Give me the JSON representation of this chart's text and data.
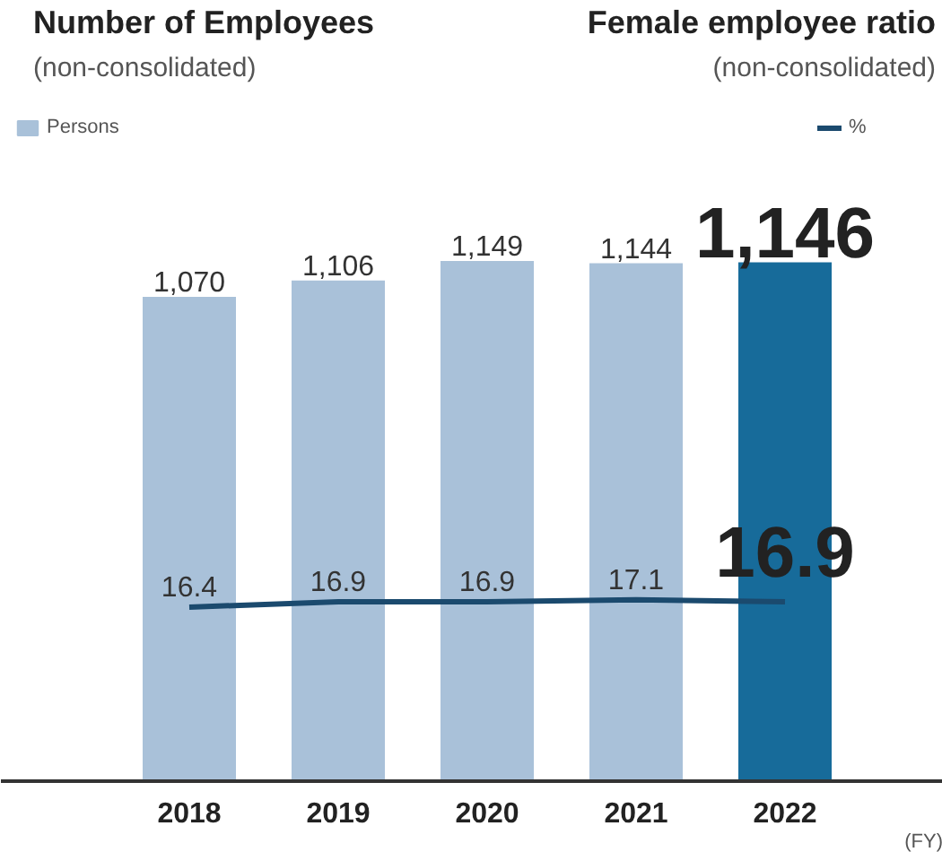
{
  "chart_data": {
    "type": "bar",
    "xlabel": "(FY)",
    "annotations": [
      "Number of Employees",
      "(non-consolidated)",
      "Female employee ratio",
      "(non-consolidated)"
    ],
    "categories": [
      "2018",
      "2019",
      "2020",
      "2021",
      "2022"
    ],
    "series": [
      {
        "name": "Persons",
        "value_labels": [
          "1,070",
          "1,106",
          "1,149",
          "1,144",
          "1,146"
        ],
        "colors": [
          "#a9c1d9",
          "#a9c1d9",
          "#a9c1d9",
          "#a9c1d9",
          "#176b9a"
        ],
        "color": "#a9c1d9",
        "values": [
          1070,
          1106,
          1149,
          1144,
          1146
        ]
      },
      {
        "name": "%",
        "type": "line",
        "axis": "y2",
        "color": "#1b4a6e",
        "values": [
          16.4,
          16.9,
          16.9,
          17.1,
          16.9
        ]
      }
    ],
    "data_labels": true,
    "legend": "top",
    "grid": false
  }
}
